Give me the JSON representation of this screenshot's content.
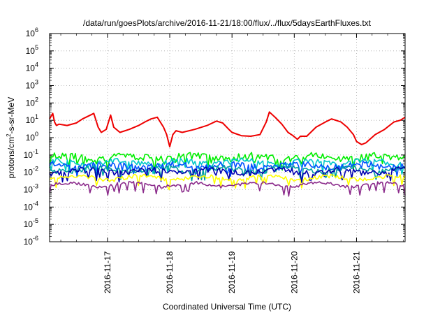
{
  "chart_data": {
    "type": "line",
    "title": "/data/run/goesPlots/archive/2016-11-21/18:00/flux/../flux/5daysEarthFluxes.txt",
    "xlabel": "Coordinated Universal Time (UTC)",
    "ylabel": "protons/cm2-s-sr-MeV",
    "ylabel_parts": {
      "pre": "protons/cm",
      "sup": "2",
      "post": "-s-sr-MeV"
    },
    "y_scale": "log",
    "ylim": [
      1e-06,
      1000000.0
    ],
    "y_ticks": [
      {
        "base": "10",
        "exp": "6"
      },
      {
        "base": "10",
        "exp": "5"
      },
      {
        "base": "10",
        "exp": "4"
      },
      {
        "base": "10",
        "exp": "3"
      },
      {
        "base": "10",
        "exp": "2"
      },
      {
        "base": "10",
        "exp": "1"
      },
      {
        "base": "10",
        "exp": "0"
      },
      {
        "base": "10",
        "exp": "-1"
      },
      {
        "base": "10",
        "exp": "-2"
      },
      {
        "base": "10",
        "exp": "-3"
      },
      {
        "base": "10",
        "exp": "-4"
      },
      {
        "base": "10",
        "exp": "-5"
      },
      {
        "base": "10",
        "exp": "-6"
      }
    ],
    "x_ticks": [
      "2016-11-17",
      "2016-11-18",
      "2016-11-19",
      "2016-11-20",
      "2016-11-21"
    ],
    "xlim_days": [
      16.07,
      21.78
    ],
    "grid": "dotted",
    "legend": "none",
    "series": [
      {
        "color": "#ee0000",
        "x": [
          16.07,
          16.12,
          16.15,
          16.18,
          16.22,
          16.35,
          16.5,
          16.6,
          16.7,
          16.78,
          16.85,
          16.9,
          16.98,
          17.05,
          17.1,
          17.2,
          17.35,
          17.5,
          17.6,
          17.7,
          17.8,
          17.9,
          17.95,
          18.0,
          18.05,
          18.1,
          18.2,
          18.4,
          18.6,
          18.75,
          18.85,
          18.95,
          19.0,
          19.15,
          19.3,
          19.45,
          19.55,
          19.6,
          19.7,
          19.8,
          19.9,
          19.98,
          20.05,
          20.1,
          20.2,
          20.35,
          20.5,
          20.6,
          20.75,
          20.85,
          20.95,
          21.0,
          21.08,
          21.15,
          21.3,
          21.45,
          21.6,
          21.7,
          21.78
        ],
        "y": [
          12,
          25,
          8,
          5,
          6,
          5,
          7,
          12,
          18,
          25,
          4,
          2,
          3,
          20,
          4,
          2,
          3,
          5,
          8,
          12,
          15,
          4,
          1.5,
          0.3,
          1.5,
          2.5,
          2,
          3,
          5,
          9,
          7,
          3,
          2,
          1.3,
          1.2,
          1.5,
          8,
          30,
          14,
          6,
          2,
          1.3,
          0.8,
          1.2,
          1.2,
          4,
          8,
          12,
          8,
          4,
          1.5,
          0.6,
          0.4,
          0.5,
          1.5,
          3,
          8,
          10,
          15
        ]
      },
      {
        "color": "#00ee00",
        "level": 0.08,
        "noise": 0.45,
        "seed": 1
      },
      {
        "color": "#00c8c8",
        "level": 0.04,
        "noise": 0.4,
        "seed": 2
      },
      {
        "color": "#0050ff",
        "level": 0.025,
        "noise": 0.45,
        "seed": 3
      },
      {
        "color": "#00a0a0",
        "level": 0.015,
        "noise": 0.35,
        "seed": 4
      },
      {
        "color": "#0000b0",
        "level": 0.012,
        "noise": 0.4,
        "seed": 5
      },
      {
        "color": "#ffff00",
        "level": 0.005,
        "noise": 0.25,
        "seed": 6
      },
      {
        "color": "#8b2b8b",
        "level": 0.002,
        "noise": 0.2,
        "seed": 7
      }
    ]
  }
}
